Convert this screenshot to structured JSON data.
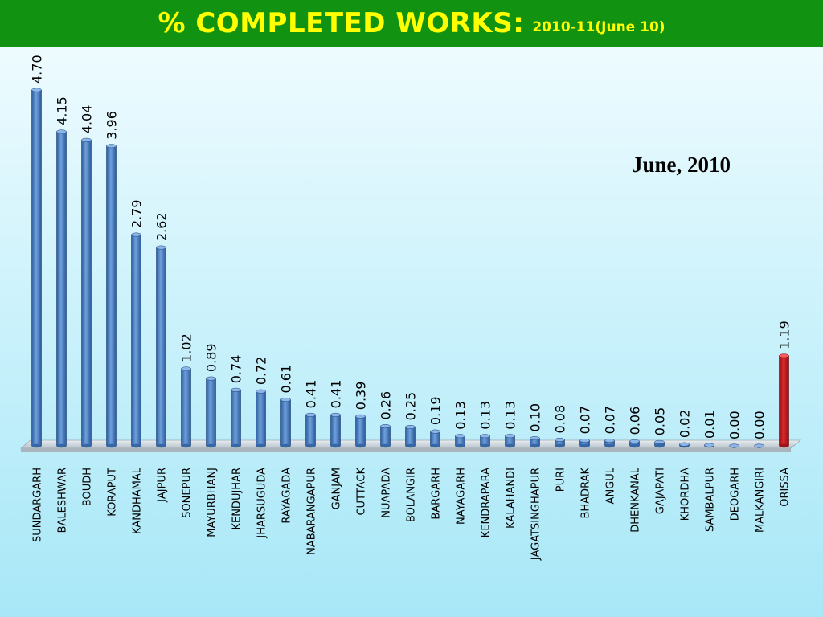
{
  "header": {
    "title": "% COMPLETED WORKS:",
    "subtitle": "2010-11(June 10)",
    "background_color": "#119211",
    "text_color": "#ffff00"
  },
  "annotation": {
    "text": "June, 2010"
  },
  "chart_data": {
    "type": "bar",
    "orientation": "vertical",
    "style": "3d-cylinder",
    "categories": [
      "SUNDARGARH",
      "BALESHWAR",
      "BOUDH",
      "KORAPUT",
      "KANDHAMAL",
      "JAJPUR",
      "SONEPUR",
      "MAYURBHANJ",
      "KENDUJHAR",
      "JHARSUGUDA",
      "RAYAGADA",
      "NABARANGAPUR",
      "GANJAM",
      "CUTTACK",
      "NUAPADA",
      "BOLANGIR",
      "BARGARH",
      "NAYAGARH",
      "KENDRAPARA",
      "KALAHANDI",
      "JAGATSINGHAPUR",
      "PURI",
      "BHADRAK",
      "ANGUL",
      "DHENKANAL",
      "GAJAPATI",
      "KHORDHA",
      "SAMBALPUR",
      "DEOGARH",
      "MALKANGIRI",
      "ORISSA"
    ],
    "values": [
      4.7,
      4.15,
      4.04,
      3.96,
      2.79,
      2.62,
      1.02,
      0.89,
      0.74,
      0.72,
      0.61,
      0.41,
      0.41,
      0.39,
      0.26,
      0.25,
      0.19,
      0.13,
      0.13,
      0.13,
      0.1,
      0.08,
      0.07,
      0.07,
      0.06,
      0.05,
      0.02,
      0.01,
      0.0,
      0.0,
      1.19
    ],
    "value_labels": [
      "4.70",
      "4.15",
      "4.04",
      "3.96",
      "2.79",
      "2.62",
      "1.02",
      "0.89",
      "0.74",
      "0.72",
      "0.61",
      "0.41",
      "0.41",
      "0.39",
      "0.26",
      "0.25",
      "0.19",
      "0.13",
      "0.13",
      "0.13",
      "0.10",
      "0.08",
      "0.07",
      "0.07",
      "0.06",
      "0.05",
      "0.02",
      "0.01",
      "0.00",
      "0.00",
      "1.19"
    ],
    "ylim": [
      0,
      5
    ],
    "grid": false,
    "legend": "none",
    "colors": {
      "default": "#4a7ebb",
      "highlight": "#c0181d"
    },
    "highlight_category": "ORISSA"
  }
}
